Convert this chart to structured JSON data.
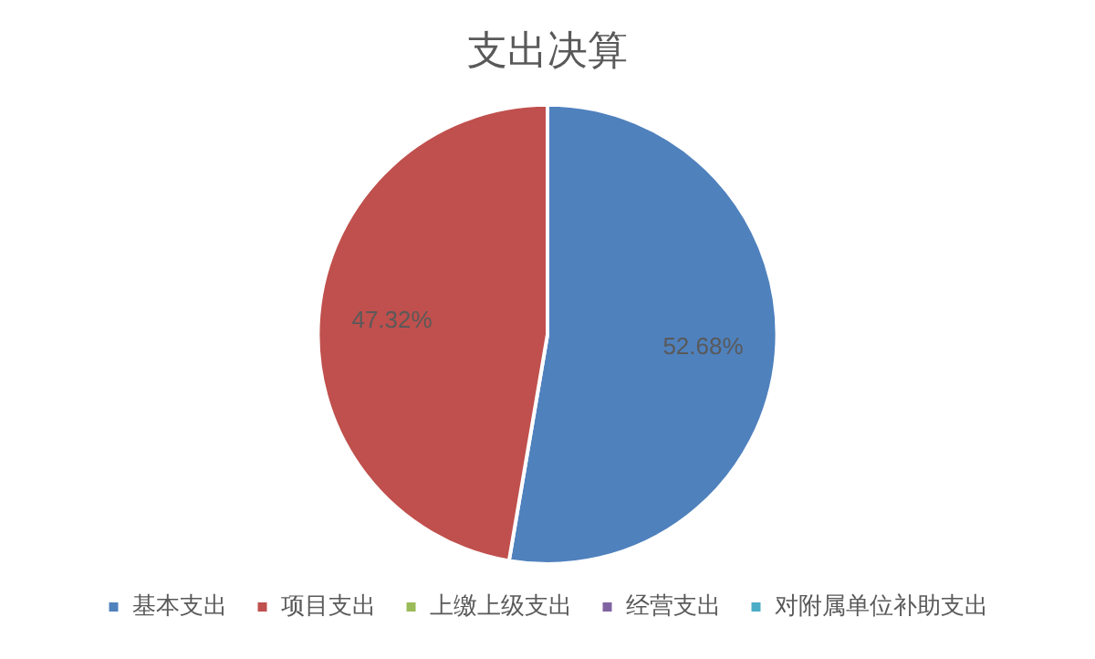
{
  "chart_data": {
    "type": "pie",
    "title": "支出决算",
    "categories": [
      "基本支出",
      "项目支出",
      "上缴上级支出",
      "经营支出",
      "对附属单位补助支出"
    ],
    "values": [
      52.68,
      47.32,
      0,
      0,
      0
    ],
    "colors": [
      "#4f81bd",
      "#c0504d",
      "#9bbb59",
      "#8064a2",
      "#4bacc6"
    ],
    "value_labels": [
      "52.68%",
      "47.32%",
      null,
      null,
      null
    ],
    "legend": "bottom"
  }
}
